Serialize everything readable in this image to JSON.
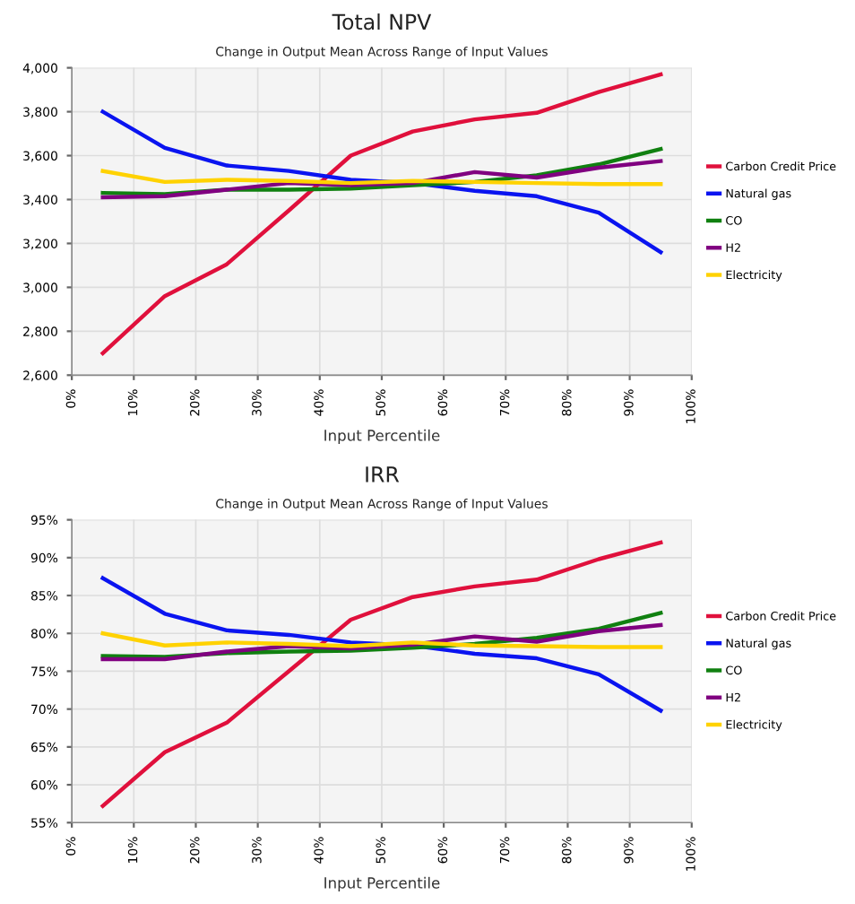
{
  "chart_data": [
    {
      "type": "line",
      "title": "Total NPV",
      "subtitle": "Change in Output Mean Across Range of Input Values",
      "xlabel": "Input Percentile",
      "x": [
        5,
        15,
        25,
        35,
        45,
        55,
        65,
        75,
        85,
        95
      ],
      "xlim": [
        0,
        100
      ],
      "xticks": [
        {
          "value": 0,
          "label": "0%"
        },
        {
          "value": 10,
          "label": "10%"
        },
        {
          "value": 20,
          "label": "20%"
        },
        {
          "value": 30,
          "label": "30%"
        },
        {
          "value": 40,
          "label": "40%"
        },
        {
          "value": 50,
          "label": "50%"
        },
        {
          "value": 60,
          "label": "60%"
        },
        {
          "value": 70,
          "label": "70%"
        },
        {
          "value": 80,
          "label": "80%"
        },
        {
          "value": 90,
          "label": "90%"
        },
        {
          "value": 100,
          "label": "100%"
        }
      ],
      "ylim": [
        2600,
        4000
      ],
      "yticks": [
        {
          "value": 2600,
          "label": "2,600"
        },
        {
          "value": 2800,
          "label": "2,800"
        },
        {
          "value": 3000,
          "label": "3,000"
        },
        {
          "value": 3200,
          "label": "3,200"
        },
        {
          "value": 3400,
          "label": "3,400"
        },
        {
          "value": 3600,
          "label": "3,600"
        },
        {
          "value": 3800,
          "label": "3,800"
        },
        {
          "value": 4000,
          "label": "4,000"
        }
      ],
      "grid": true,
      "legend": "right",
      "marker": "none",
      "line_style": "solid",
      "series": [
        {
          "name": "Carbon Credit Price",
          "color": "#e0103c",
          "values": [
            2700,
            2960,
            3105,
            3350,
            3600,
            3710,
            3765,
            3795,
            3890,
            3970
          ]
        },
        {
          "name": "Natural gas",
          "color": "#0a14f0",
          "values": [
            3800,
            3635,
            3555,
            3530,
            3490,
            3475,
            3440,
            3415,
            3340,
            3160
          ]
        },
        {
          "name": "CO",
          "color": "#108010",
          "values": [
            3430,
            3425,
            3445,
            3445,
            3450,
            3465,
            3480,
            3510,
            3560,
            3630
          ]
        },
        {
          "name": "H2",
          "color": "#800080",
          "values": [
            3410,
            3415,
            3445,
            3475,
            3465,
            3475,
            3525,
            3500,
            3545,
            3575
          ]
        },
        {
          "name": "Electricity",
          "color": "#ffd200",
          "values": [
            3530,
            3480,
            3490,
            3485,
            3475,
            3485,
            3480,
            3475,
            3470,
            3470
          ]
        }
      ]
    },
    {
      "type": "line",
      "title": "IRR",
      "subtitle": "Change in Output Mean Across Range of Input Values",
      "xlabel": "Input Percentile",
      "x": [
        5,
        15,
        25,
        35,
        45,
        55,
        65,
        75,
        85,
        95
      ],
      "xlim": [
        0,
        100
      ],
      "xticks": [
        {
          "value": 0,
          "label": "0%"
        },
        {
          "value": 10,
          "label": "10%"
        },
        {
          "value": 20,
          "label": "20%"
        },
        {
          "value": 30,
          "label": "30%"
        },
        {
          "value": 40,
          "label": "40%"
        },
        {
          "value": 50,
          "label": "50%"
        },
        {
          "value": 60,
          "label": "60%"
        },
        {
          "value": 70,
          "label": "70%"
        },
        {
          "value": 80,
          "label": "80%"
        },
        {
          "value": 90,
          "label": "90%"
        },
        {
          "value": 100,
          "label": "100%"
        }
      ],
      "ylim": [
        55,
        95
      ],
      "yticks": [
        {
          "value": 55,
          "label": "55%"
        },
        {
          "value": 60,
          "label": "60%"
        },
        {
          "value": 65,
          "label": "65%"
        },
        {
          "value": 70,
          "label": "70%"
        },
        {
          "value": 75,
          "label": "75%"
        },
        {
          "value": 80,
          "label": "80%"
        },
        {
          "value": 85,
          "label": "85%"
        },
        {
          "value": 90,
          "label": "90%"
        },
        {
          "value": 95,
          "label": "95%"
        }
      ],
      "grid": true,
      "legend": "right",
      "marker": "none",
      "line_style": "solid",
      "series": [
        {
          "name": "Carbon Credit Price",
          "color": "#e0103c",
          "values": [
            57.2,
            64.3,
            68.2,
            75.0,
            81.8,
            84.8,
            86.2,
            87.1,
            89.8,
            92.0
          ]
        },
        {
          "name": "Natural gas",
          "color": "#0a14f0",
          "values": [
            87.3,
            82.6,
            80.4,
            79.8,
            78.8,
            78.4,
            77.3,
            76.7,
            74.6,
            69.8
          ]
        },
        {
          "name": "CO",
          "color": "#108010",
          "values": [
            77.0,
            76.9,
            77.4,
            77.6,
            77.7,
            78.1,
            78.6,
            79.4,
            80.6,
            82.7
          ]
        },
        {
          "name": "H2",
          "color": "#800080",
          "values": [
            76.6,
            76.6,
            77.6,
            78.3,
            78.0,
            78.5,
            79.6,
            78.9,
            80.3,
            81.1
          ]
        },
        {
          "name": "Electricity",
          "color": "#ffd200",
          "values": [
            80.0,
            78.4,
            78.8,
            78.6,
            78.3,
            78.8,
            78.4,
            78.3,
            78.2,
            78.2
          ]
        }
      ]
    }
  ]
}
